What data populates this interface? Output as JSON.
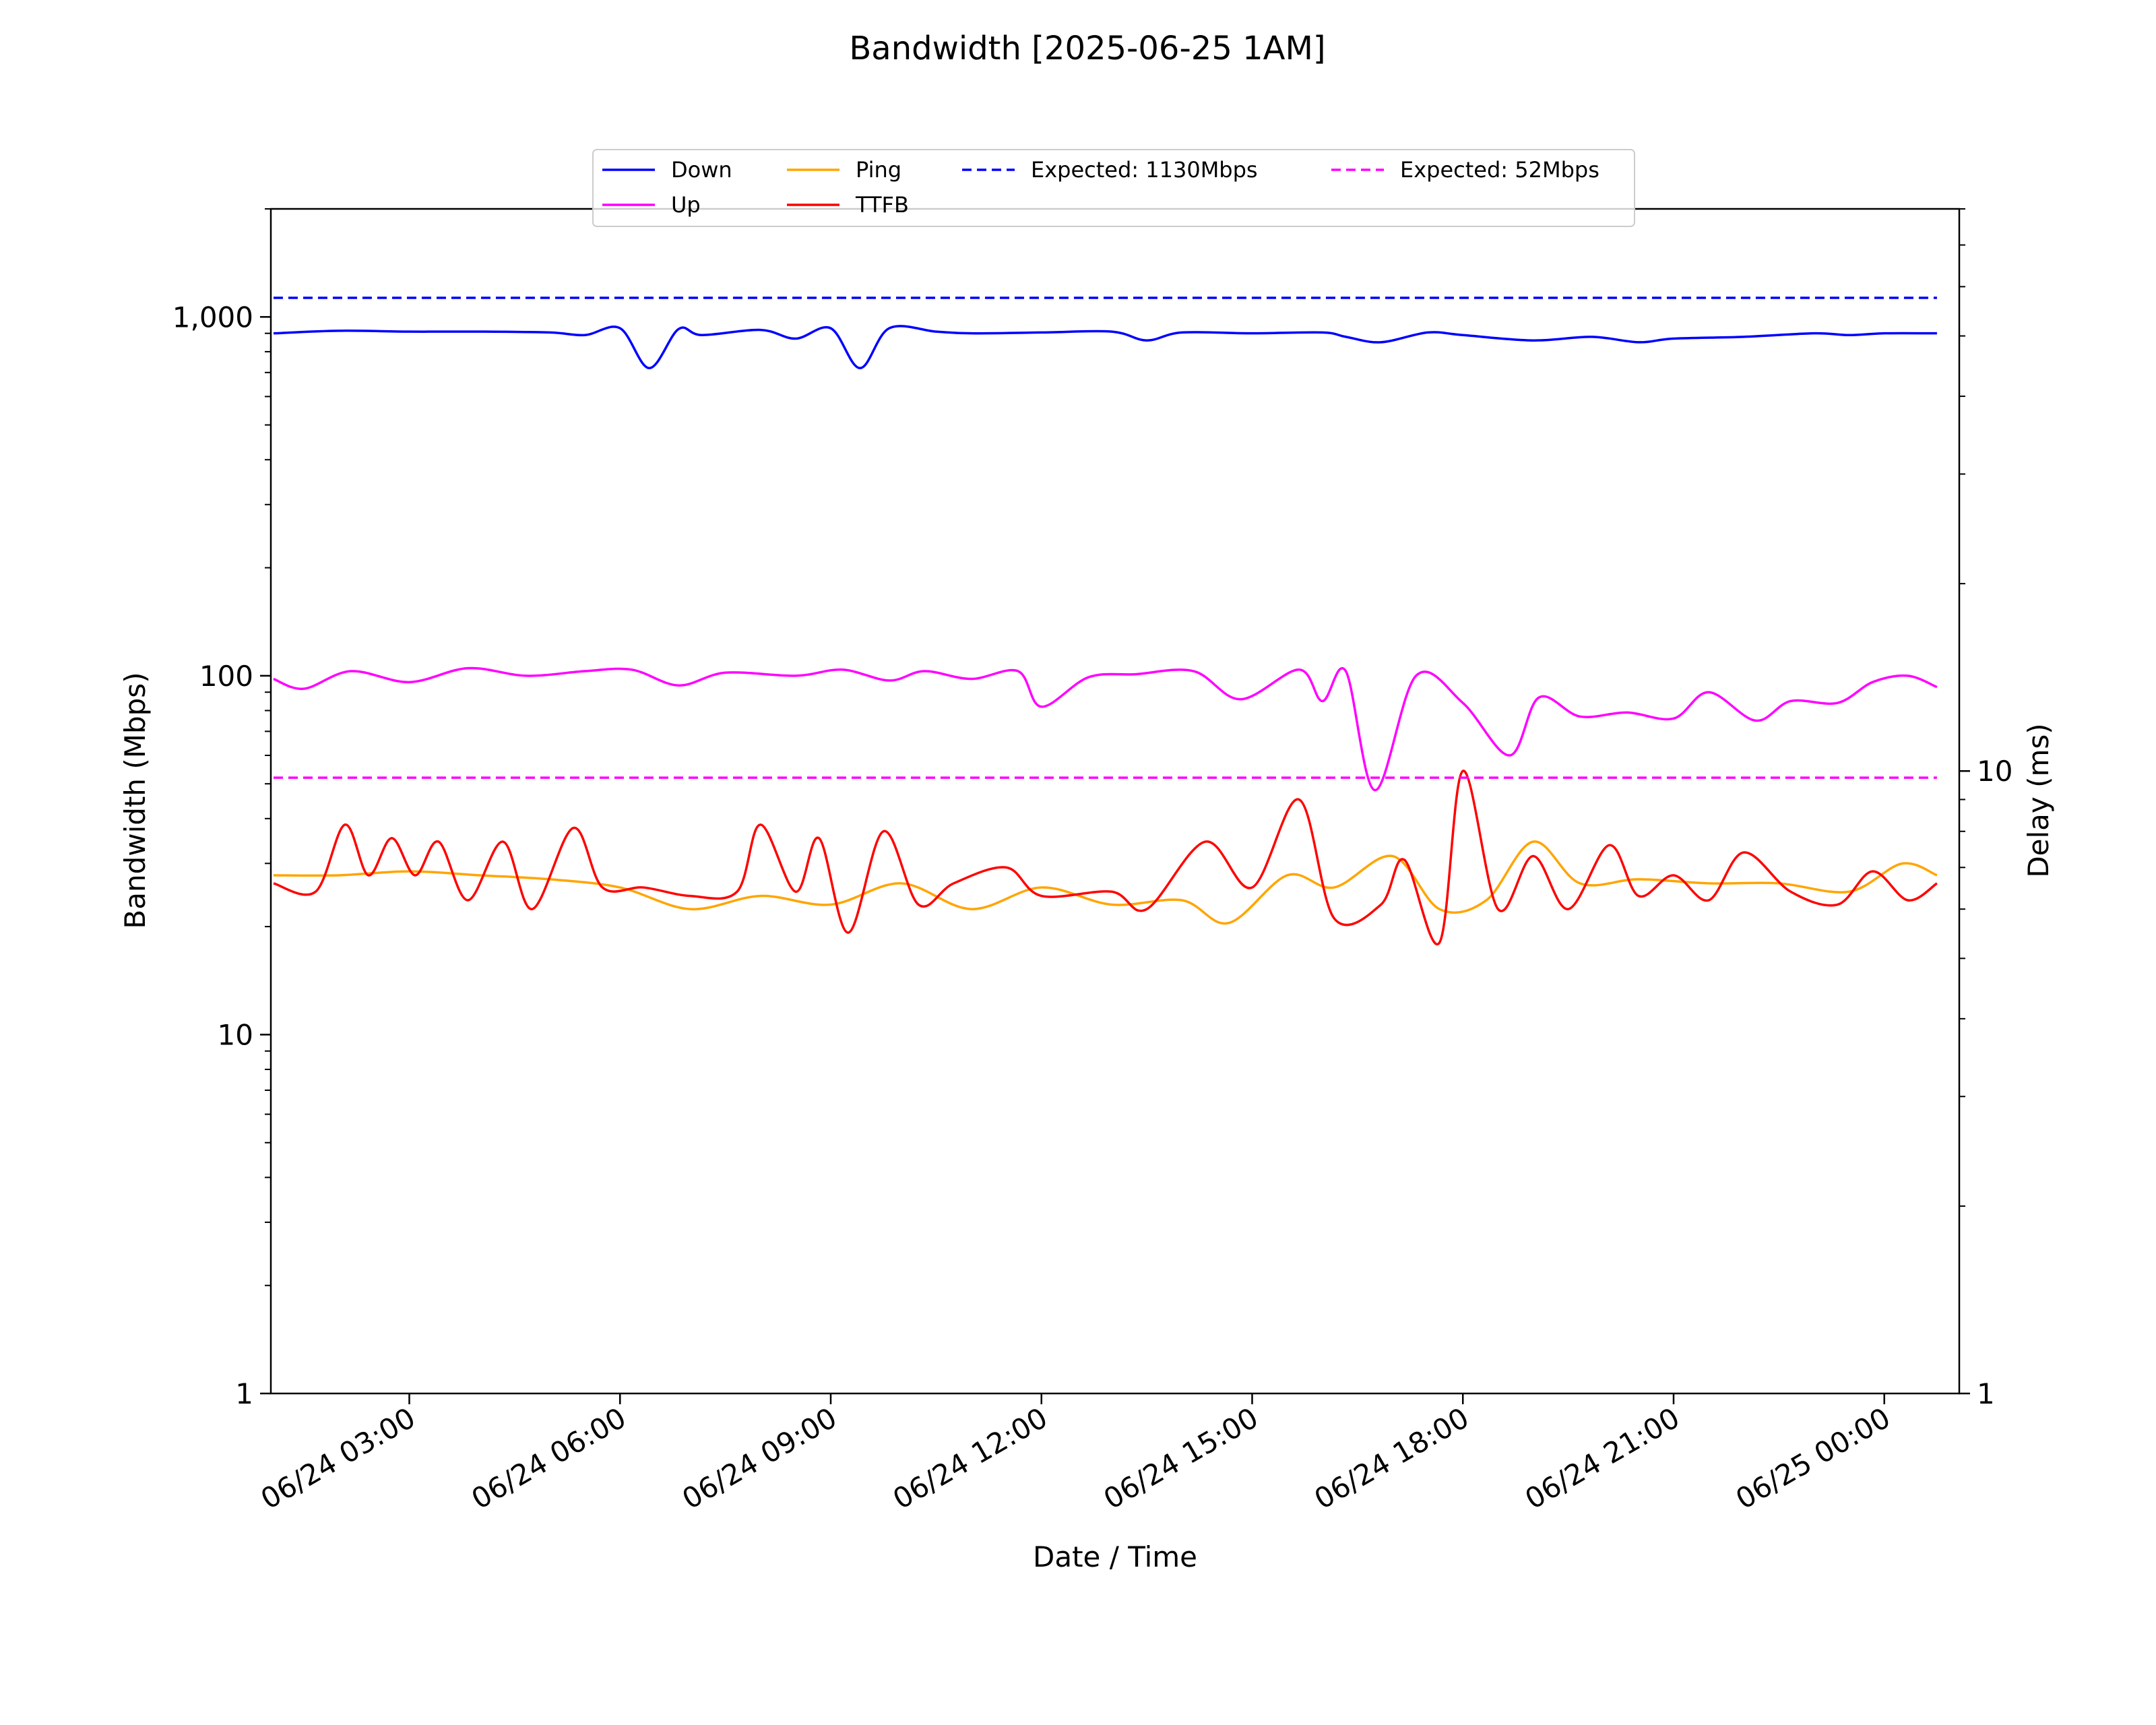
{
  "chart_data": {
    "type": "line",
    "title": "Bandwidth [2025-06-25 1AM]",
    "xlabel": "Date / Time",
    "ylabel_left": "Bandwidth (Mbps)",
    "ylabel_right": "Delay (ms)",
    "x_range": [
      "06/24 01:04",
      "06/25 00:45"
    ],
    "x_ticks": [
      "06/24 03:00",
      "06/24 06:00",
      "06/24 09:00",
      "06/24 12:00",
      "06/24 15:00",
      "06/24 18:00",
      "06/24 21:00",
      "06/25 00:00"
    ],
    "y_left_scale": "log",
    "y_left_range": [
      1,
      2000
    ],
    "y_left_ticks": [
      "1",
      "10",
      "100",
      "1,000"
    ],
    "y_right_scale": "log",
    "y_right_range": [
      1,
      80
    ],
    "y_right_ticks": [
      "1",
      "10"
    ],
    "legend_position": "top-center",
    "grid": false,
    "series": [
      {
        "name": "Down",
        "axis": "left",
        "color": "#0000ff",
        "style": "solid",
        "x": [
          "06/24 01:04",
          "06/24 02:00",
          "06/24 03:00",
          "06/24 04:00",
          "06/24 05:00",
          "06/24 05:30",
          "06/24 06:00",
          "06/24 06:25",
          "06/24 06:50",
          "06/24 07:10",
          "06/24 08:00",
          "06/24 08:30",
          "06/24 09:00",
          "06/24 09:25",
          "06/24 09:50",
          "06/24 10:30",
          "06/24 11:00",
          "06/24 12:00",
          "06/24 13:00",
          "06/24 13:30",
          "06/24 14:00",
          "06/24 15:00",
          "06/24 16:00",
          "06/24 16:20",
          "06/24 16:50",
          "06/24 17:30",
          "06/24 18:00",
          "06/24 19:00",
          "06/24 19:50",
          "06/24 20:30",
          "06/24 21:00",
          "06/24 22:00",
          "06/24 23:00",
          "06/24 23:30",
          "06/25 00:00",
          "06/25 00:45"
        ],
        "values": [
          900,
          915,
          910,
          910,
          905,
          890,
          930,
          720,
          925,
          890,
          920,
          870,
          930,
          720,
          930,
          910,
          900,
          905,
          910,
          860,
          905,
          900,
          905,
          880,
          850,
          905,
          890,
          860,
          880,
          850,
          870,
          880,
          900,
          890,
          900,
          900
        ]
      },
      {
        "name": "Up",
        "axis": "left",
        "color": "#ff00ff",
        "style": "solid",
        "x": [
          "06/24 01:04",
          "06/24 01:30",
          "06/24 02:10",
          "06/24 03:00",
          "06/24 03:50",
          "06/24 04:40",
          "06/24 05:30",
          "06/24 06:10",
          "06/24 06:50",
          "06/24 07:30",
          "06/24 08:30",
          "06/24 09:10",
          "06/24 09:50",
          "06/24 10:20",
          "06/24 11:00",
          "06/24 11:40",
          "06/24 12:00",
          "06/24 12:40",
          "06/24 13:20",
          "06/24 14:10",
          "06/24 14:50",
          "06/24 15:40",
          "06/24 16:00",
          "06/24 16:20",
          "06/24 16:45",
          "06/24 17:20",
          "06/24 18:00",
          "06/24 18:40",
          "06/24 19:05",
          "06/24 19:40",
          "06/24 20:20",
          "06/24 21:00",
          "06/24 21:30",
          "06/24 22:10",
          "06/24 22:40",
          "06/24 23:20",
          "06/24 23:50",
          "06/25 00:20",
          "06/25 00:45"
        ],
        "values": [
          98,
          92,
          103,
          96,
          105,
          100,
          103,
          104,
          94,
          102,
          100,
          104,
          97,
          103,
          98,
          103,
          82,
          99,
          101,
          103,
          86,
          104,
          85,
          103,
          48,
          100,
          84,
          60,
          87,
          77,
          79,
          76,
          90,
          75,
          85,
          84,
          96,
          100,
          93
        ]
      },
      {
        "name": "Ping",
        "axis": "right",
        "color": "#ffa500",
        "style": "solid",
        "x": [
          "06/24 01:04",
          "06/24 02:00",
          "06/24 03:00",
          "06/24 04:00",
          "06/24 05:00",
          "06/24 06:00",
          "06/24 07:00",
          "06/24 08:00",
          "06/24 09:00",
          "06/24 10:00",
          "06/24 11:00",
          "06/24 12:00",
          "06/24 13:00",
          "06/24 14:00",
          "06/24 14:40",
          "06/24 15:30",
          "06/24 16:10",
          "06/24 17:00",
          "06/24 17:40",
          "06/24 18:20",
          "06/24 19:00",
          "06/24 19:40",
          "06/24 20:30",
          "06/24 21:30",
          "06/24 22:30",
          "06/24 23:30",
          "06/25 00:15",
          "06/25 00:45"
        ],
        "values": [
          6.8,
          6.8,
          6.9,
          6.8,
          6.7,
          6.5,
          6.0,
          6.3,
          6.1,
          6.6,
          6.0,
          6.5,
          6.1,
          6.2,
          5.7,
          6.8,
          6.5,
          7.3,
          6.0,
          6.2,
          7.7,
          6.6,
          6.7,
          6.6,
          6.6,
          6.4,
          7.1,
          6.8
        ]
      },
      {
        "name": "TTFB",
        "axis": "right",
        "color": "#ff0000",
        "style": "solid",
        "x": [
          "06/24 01:04",
          "06/24 01:40",
          "06/24 02:05",
          "06/24 02:25",
          "06/24 02:45",
          "06/24 03:05",
          "06/24 03:25",
          "06/24 03:50",
          "06/24 04:20",
          "06/24 04:45",
          "06/24 05:20",
          "06/24 05:45",
          "06/24 06:20",
          "06/24 07:00",
          "06/24 07:40",
          "06/24 08:00",
          "06/24 08:30",
          "06/24 08:50",
          "06/24 09:15",
          "06/24 09:45",
          "06/24 10:15",
          "06/24 10:45",
          "06/24 11:30",
          "06/24 12:00",
          "06/24 13:00",
          "06/24 13:30",
          "06/24 14:20",
          "06/24 15:00",
          "06/24 15:40",
          "06/24 16:10",
          "06/24 16:50",
          "06/24 17:10",
          "06/24 17:40",
          "06/24 18:00",
          "06/24 18:30",
          "06/24 19:00",
          "06/24 19:30",
          "06/24 20:05",
          "06/24 20:30",
          "06/24 21:00",
          "06/24 21:30",
          "06/24 22:00",
          "06/24 22:40",
          "06/24 23:20",
          "06/24 23:50",
          "06/25 00:20",
          "06/25 00:45"
        ],
        "values": [
          6.6,
          6.4,
          8.2,
          6.8,
          7.8,
          6.8,
          7.7,
          6.2,
          7.7,
          6.0,
          8.1,
          6.5,
          6.5,
          6.3,
          6.4,
          8.2,
          6.4,
          7.8,
          5.5,
          8.0,
          6.1,
          6.6,
          7.0,
          6.3,
          6.4,
          6.0,
          7.7,
          6.5,
          9.0,
          5.8,
          6.1,
          7.2,
          5.3,
          10.0,
          6.0,
          7.3,
          6.0,
          7.6,
          6.3,
          6.8,
          6.2,
          7.4,
          6.4,
          6.1,
          6.9,
          6.2,
          6.6
        ]
      },
      {
        "name": "Expected: 1130Mbps",
        "axis": "left",
        "color": "#0000ff",
        "style": "dashed",
        "x": [
          "06/24 01:04",
          "06/25 00:45"
        ],
        "values": [
          1130,
          1130
        ]
      },
      {
        "name": "Expected: 52Mbps",
        "axis": "left",
        "color": "#ff00ff",
        "style": "dashed",
        "x": [
          "06/24 01:04",
          "06/25 00:45"
        ],
        "values": [
          52,
          52
        ]
      }
    ]
  }
}
